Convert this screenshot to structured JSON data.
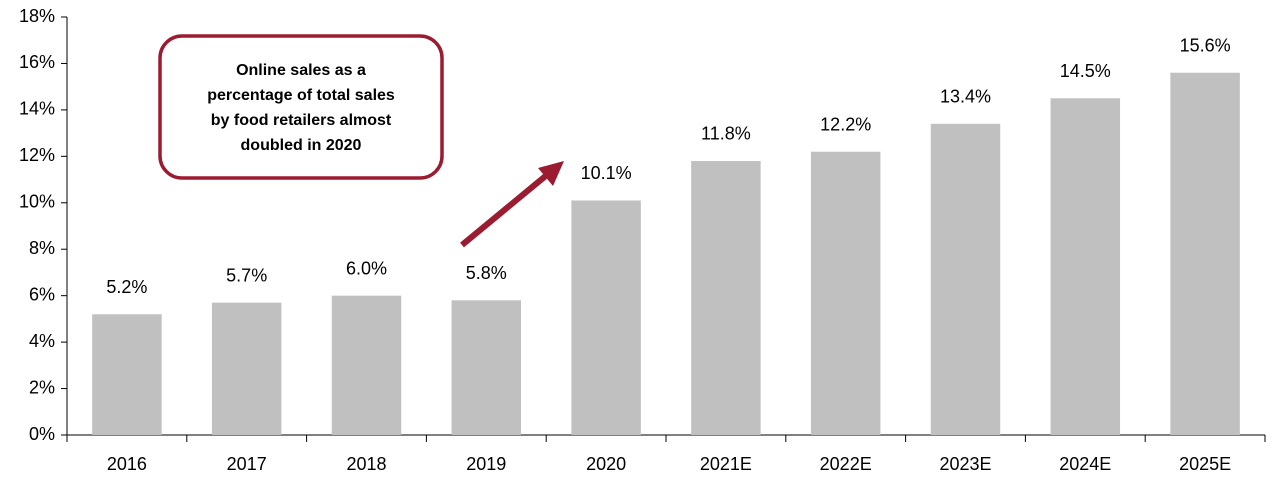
{
  "chart_data": {
    "type": "bar",
    "categories": [
      "2016",
      "2017",
      "2018",
      "2019",
      "2020",
      "2021E",
      "2022E",
      "2023E",
      "2024E",
      "2025E"
    ],
    "values": [
      5.2,
      5.7,
      6.0,
      5.8,
      10.1,
      11.8,
      12.2,
      13.4,
      14.5,
      15.6
    ],
    "value_labels": [
      "5.2%",
      "5.7%",
      "6.0%",
      "5.8%",
      "10.1%",
      "11.8%",
      "12.2%",
      "13.4%",
      "14.5%",
      "15.6%"
    ],
    "color": "#c0c0c0",
    "ylim": [
      0,
      18
    ],
    "yticks": [
      {
        "value": 0,
        "label": "0%"
      },
      {
        "value": 2,
        "label": "2%"
      },
      {
        "value": 4,
        "label": "4%"
      },
      {
        "value": 6,
        "label": "6%"
      },
      {
        "value": 8,
        "label": "8%"
      },
      {
        "value": 10,
        "label": "10%"
      },
      {
        "value": 12,
        "label": "12%"
      },
      {
        "value": 14,
        "label": "14%"
      },
      {
        "value": 16,
        "label": "16%"
      },
      {
        "value": 18,
        "label": "18%"
      }
    ],
    "grid": false,
    "annotation": [
      "Online sales as a",
      "percentage of total sales",
      "by food retailers almost",
      "doubled in 2020"
    ]
  }
}
